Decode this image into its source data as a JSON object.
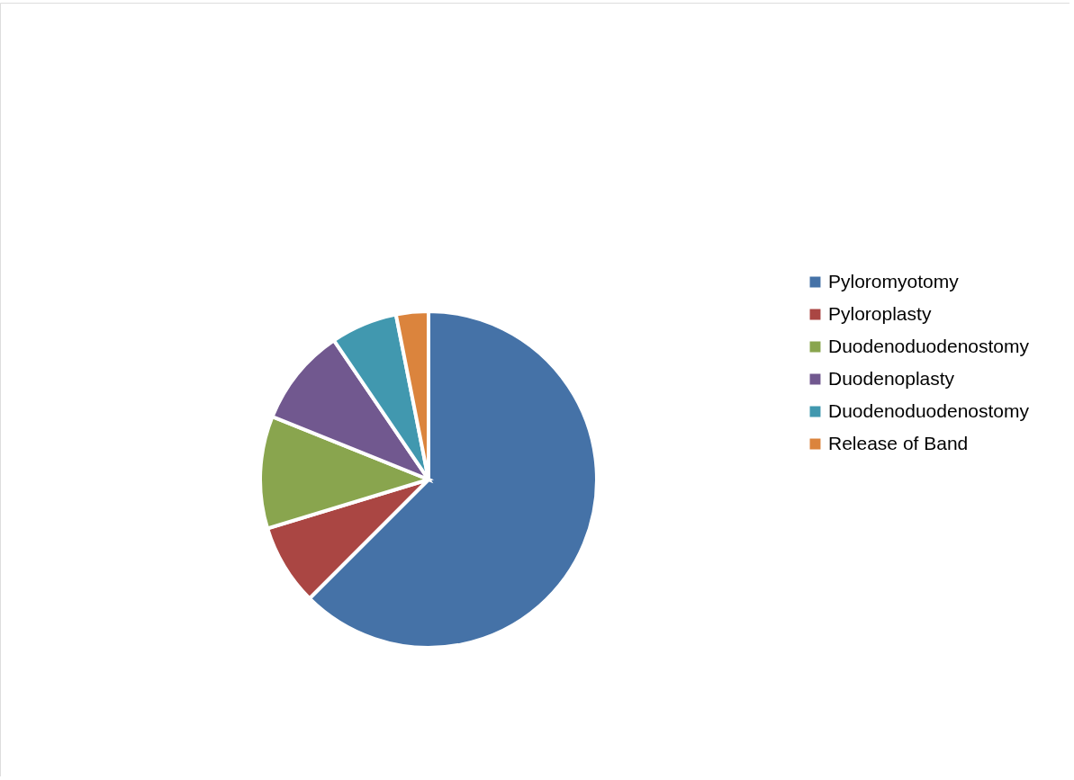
{
  "chart_data": {
    "type": "pie",
    "categories": [
      "Pyloromyotomy",
      "Pyloroplasty",
      "Duodenoduodenostomy",
      "Duodenoplasty",
      "Duodenoduodenostomy",
      "Release of Band"
    ],
    "values": [
      62.5,
      7.8,
      10.8,
      9.4,
      6.4,
      3.1
    ],
    "colors": [
      "#4572a7",
      "#aa4643",
      "#89a54e",
      "#71588f",
      "#4198af",
      "#db843d"
    ],
    "legend": "right"
  }
}
